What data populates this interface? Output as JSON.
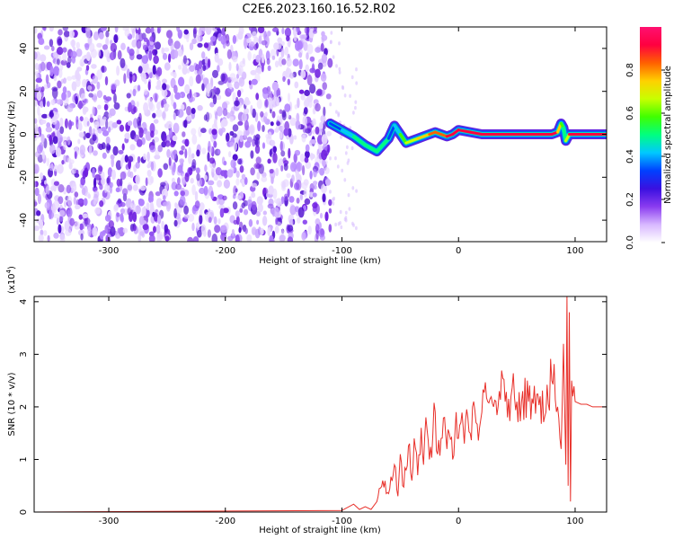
{
  "title": "C2E6.2023.160.16.52.R02",
  "chart_data": [
    {
      "type": "heatmap",
      "xlabel": "Height of straight line (km)",
      "ylabel": "Frequency (Hz)",
      "xlim": [
        -364,
        127
      ],
      "ylim": [
        -50,
        50
      ],
      "x_ticks": [
        -300,
        -200,
        -100,
        0,
        100
      ],
      "x_tick_labels": [
        "-300",
        "-200",
        "-100",
        "0",
        "100"
      ],
      "y_ticks": [
        -40,
        -20,
        0,
        20,
        40
      ],
      "y_tick_labels": [
        "-40",
        "-20",
        "0",
        "20",
        "40"
      ],
      "noise_region_x": [
        -364,
        -110
      ],
      "signal_track": {
        "x": [
          -110,
          -100,
          -90,
          -80,
          -70,
          -60,
          -55,
          -50,
          -45,
          -40,
          -35,
          -30,
          -25,
          -20,
          -15,
          -10,
          -5,
          0,
          10,
          20,
          40,
          60,
          80,
          85,
          88,
          90,
          92,
          95,
          100,
          110,
          127
        ],
        "y": [
          5,
          2,
          -1,
          -5,
          -8,
          -2,
          4,
          0,
          -4,
          -3,
          -2,
          -1,
          0,
          1,
          0,
          -1,
          0,
          2,
          1,
          0,
          0,
          0,
          0,
          1,
          5,
          3,
          -3,
          0,
          0,
          0,
          0
        ],
        "amplitude": [
          0.3,
          0.4,
          0.45,
          0.5,
          0.55,
          0.4,
          0.3,
          0.5,
          0.6,
          0.65,
          0.7,
          0.75,
          0.8,
          0.8,
          0.85,
          0.85,
          0.9,
          0.9,
          0.9,
          0.95,
          0.95,
          0.95,
          0.95,
          0.9,
          0.6,
          0.5,
          0.5,
          0.9,
          0.95,
          0.95,
          0.95
        ]
      },
      "grid": false
    },
    {
      "type": "colorbar",
      "label": "Normalized spectral amplitude",
      "range": [
        0,
        1
      ],
      "ticks": [
        0.0,
        0.2,
        0.4,
        0.6,
        0.8
      ],
      "tick_labels": [
        "0.0",
        "0.2",
        "0.4",
        "0.6",
        "0.8"
      ],
      "colors": [
        "#ffffff",
        "#d8b8ff",
        "#8a3cf0",
        "#3a10e0",
        "#0040ff",
        "#00c8ff",
        "#00ff80",
        "#40ff00",
        "#c8ff00",
        "#ffd000",
        "#ff6000",
        "#ff0040",
        "#ff1070"
      ]
    },
    {
      "type": "line",
      "xlabel": "Height of straight line (km)",
      "ylabel": "SNR (10 * v/v)",
      "scale_label": "(x10",
      "scale_exponent": "4",
      "scale_suffix": ")",
      "xlim": [
        -364,
        127
      ],
      "ylim": [
        0,
        4.1
      ],
      "x_ticks": [
        -300,
        -200,
        -100,
        0,
        100
      ],
      "x_tick_labels": [
        "-300",
        "-200",
        "-100",
        "0",
        "100"
      ],
      "y_ticks": [
        0,
        1,
        2,
        3,
        4
      ],
      "y_tick_labels": [
        "0",
        "1",
        "2",
        "3",
        "4"
      ],
      "grid": false,
      "series": [
        {
          "color": "#e8302a",
          "x": [
            -364,
            -100,
            -90,
            -85,
            -80,
            -75,
            -70,
            -65,
            -60,
            -55,
            -52,
            -50,
            -48,
            -45,
            -42,
            -40,
            -38,
            -35,
            -32,
            -30,
            -28,
            -25,
            -22,
            -20,
            -18,
            -15,
            -12,
            -10,
            -8,
            -5,
            -2,
            0,
            2,
            5,
            8,
            10,
            12,
            15,
            18,
            20,
            25,
            30,
            35,
            40,
            45,
            50,
            55,
            60,
            65,
            70,
            75,
            80,
            85,
            88,
            90,
            92,
            93,
            94,
            95,
            96,
            97,
            98,
            100,
            105,
            110,
            115,
            120,
            127
          ],
          "y": [
            0.0,
            0.03,
            0.15,
            0.05,
            0.1,
            0.05,
            0.2,
            0.6,
            0.35,
            0.9,
            0.3,
            1.1,
            0.5,
            0.8,
            1.3,
            0.6,
            1.4,
            0.7,
            1.6,
            0.9,
            1.8,
            1.0,
            1.5,
            1.9,
            1.1,
            1.4,
            1.8,
            1.2,
            1.5,
            1.0,
            1.9,
            1.4,
            1.7,
            1.3,
            1.8,
            1.5,
            2.0,
            1.7,
            1.6,
            1.9,
            2.1,
            2.0,
            2.3,
            2.1,
            2.2,
            2.1,
            2.3,
            2.1,
            2.4,
            2.2,
            1.9,
            2.5,
            2.0,
            1.2,
            3.2,
            0.9,
            4.1,
            0.5,
            3.8,
            0.2,
            2.5,
            2.2,
            2.1,
            2.05,
            2.05,
            2.0,
            2.0,
            2.0
          ]
        }
      ]
    }
  ]
}
